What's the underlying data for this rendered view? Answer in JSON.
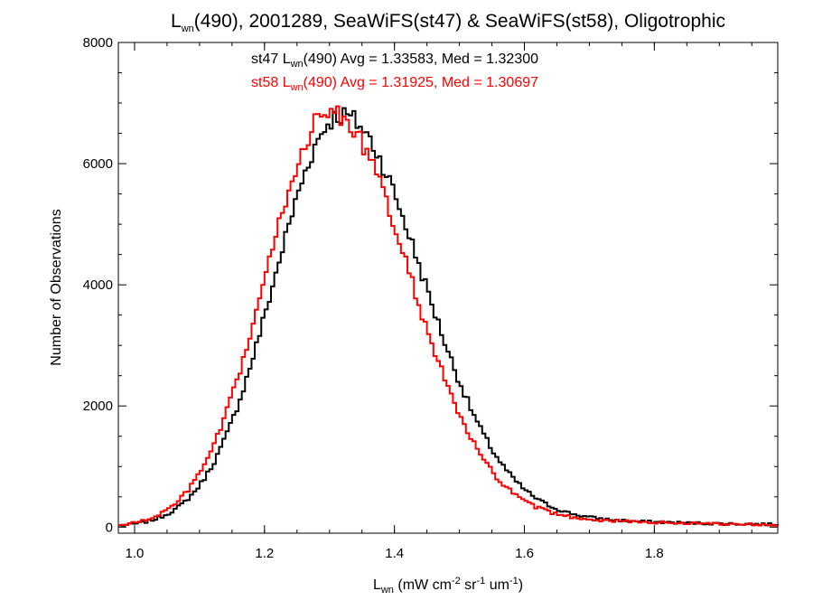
{
  "chart_data": {
    "type": "line",
    "style": "step-histogram",
    "title": {
      "prefix": "L",
      "sub": "wn",
      "rest": "(490), 2001289, SeaWiFS(st47) & SeaWiFS(st58), Oligotrophic"
    },
    "xlabel": {
      "prefix": "L",
      "sub": "wn",
      "rest_open": " (mW cm",
      "sup1": "-2",
      "mid1": " sr",
      "sup2": "-1",
      "mid2": " um",
      "sup3": "-1",
      "rest_close": ")"
    },
    "ylabel": "Number of Observations",
    "xlim": [
      0.975,
      1.99
    ],
    "ylim": [
      -100,
      8000
    ],
    "x_ticks": [
      1.0,
      1.2,
      1.4,
      1.6,
      1.8
    ],
    "x_tick_labels": [
      "1.0",
      "1.2",
      "1.4",
      "1.6",
      "1.8"
    ],
    "y_ticks": [
      0,
      2000,
      4000,
      6000,
      8000
    ],
    "y_tick_labels": [
      "0",
      "2000",
      "4000",
      "6000",
      "8000"
    ],
    "grid": false,
    "annotations": [
      {
        "prefix": "st47 L",
        "sub": "wn",
        "rest": "(490) Avg = 1.33583, Med = 1.32300",
        "color": "#000000"
      },
      {
        "prefix": "st58 L",
        "sub": "wn",
        "rest": "(490) Avg = 1.31925, Med = 1.30697",
        "color": "#ff0000"
      }
    ],
    "series": [
      {
        "color": "#000000",
        "mean": 1.33583,
        "peak_x": 1.318,
        "peak_y": 6800,
        "left_sigma": 0.102,
        "right_sigma": 0.122,
        "tail_amp": 0.06,
        "tail_sigma": 0.3,
        "bin_width": 0.005,
        "x_range": [
          0.975,
          1.99
        ]
      },
      {
        "color": "#ff0000",
        "mean": 1.31925,
        "peak_x": 1.302,
        "peak_y": 6850,
        "left_sigma": 0.1,
        "right_sigma": 0.118,
        "tail_amp": 0.06,
        "tail_sigma": 0.3,
        "bin_width": 0.005,
        "x_range": [
          0.975,
          1.99
        ]
      }
    ]
  }
}
